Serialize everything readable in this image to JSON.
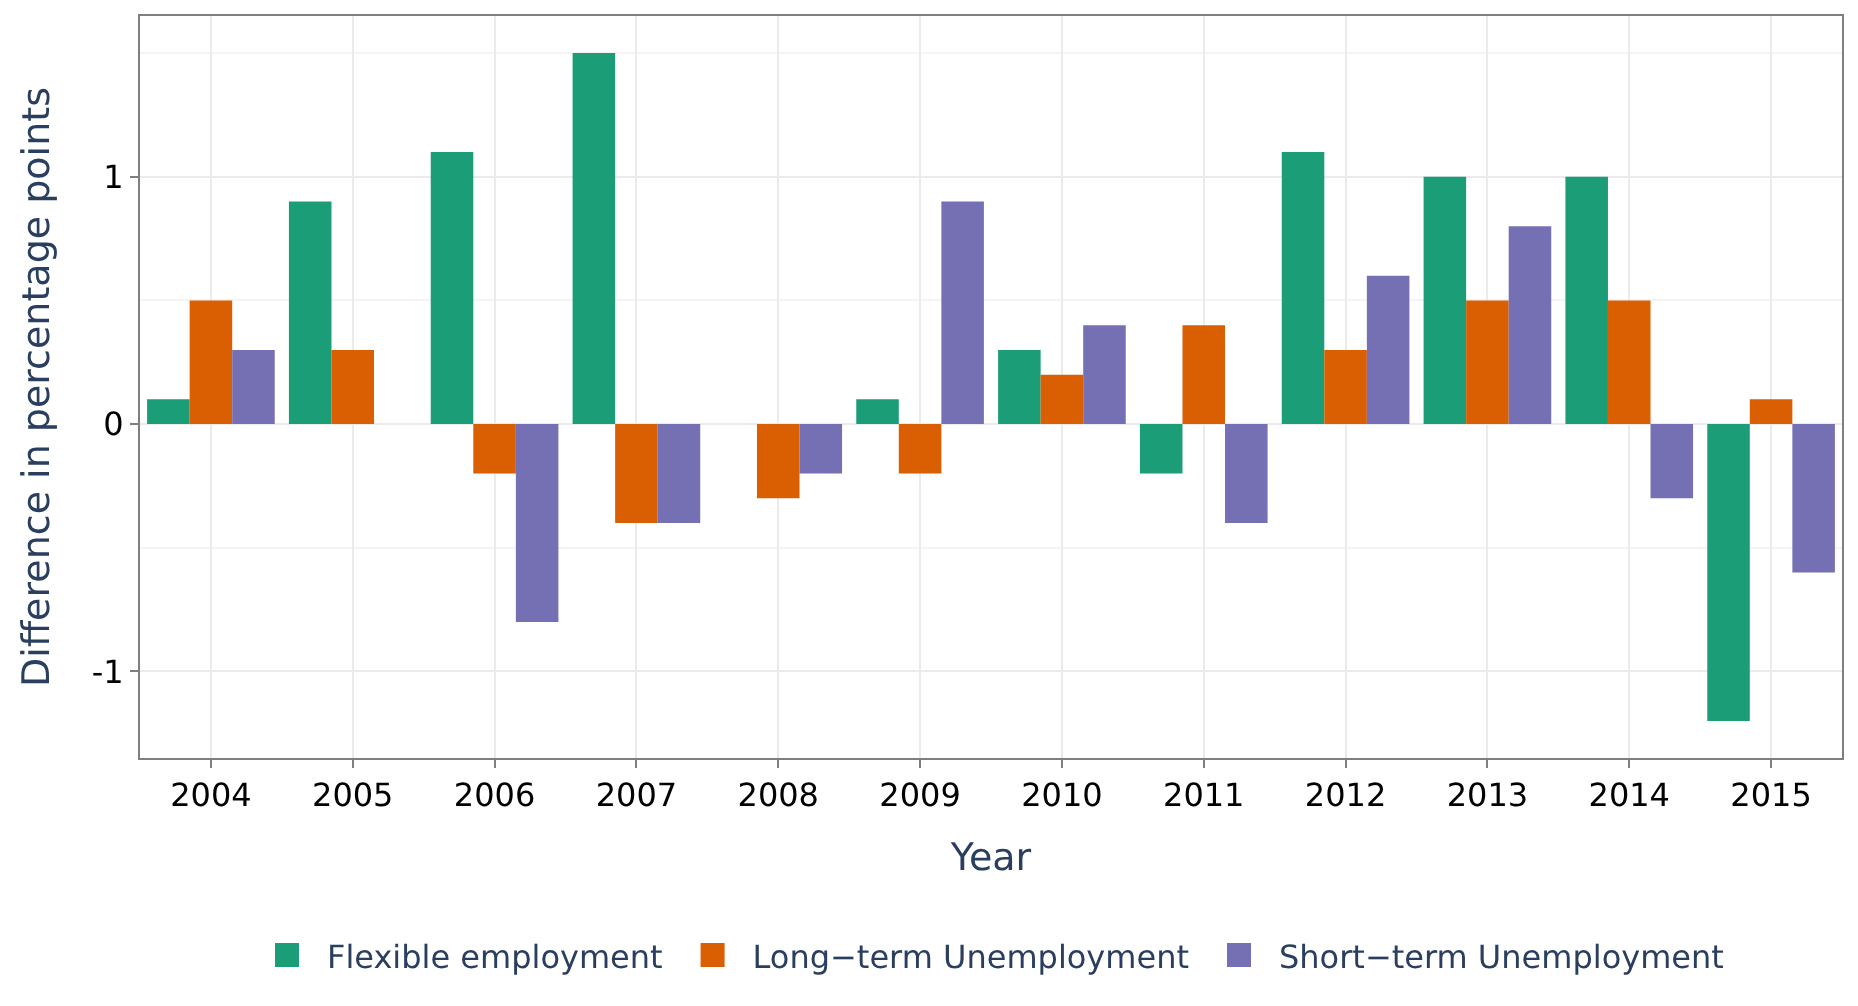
{
  "chart_data": {
    "type": "bar",
    "xlabel": "Year",
    "ylabel": "Difference in percentage points",
    "categories": [
      "2004",
      "2005",
      "2006",
      "2007",
      "2008",
      "2009",
      "2010",
      "2011",
      "2012",
      "2013",
      "2014",
      "2015"
    ],
    "series": [
      {
        "name": "Flexible employment",
        "color": "#1b9e77",
        "values": [
          0.1,
          0.9,
          1.1,
          1.5,
          0.0,
          0.1,
          0.3,
          -0.2,
          1.1,
          1.0,
          1.0,
          -1.2
        ]
      },
      {
        "name": "Long−term Unemployment",
        "color": "#d95f02",
        "values": [
          0.5,
          0.3,
          -0.2,
          -0.4,
          -0.3,
          -0.2,
          0.2,
          0.4,
          0.3,
          0.5,
          0.5,
          0.1
        ]
      },
      {
        "name": "Short−term Unemployment",
        "color": "#7570b3",
        "values": [
          0.3,
          0.0,
          -0.8,
          -0.4,
          -0.2,
          0.9,
          0.4,
          -0.4,
          0.6,
          0.8,
          -0.3,
          -0.6
        ]
      }
    ],
    "ylim": [
      -1.35,
      1.65
    ],
    "yticks": [
      -1,
      0,
      1
    ],
    "grid": true,
    "legend": "bottom"
  }
}
